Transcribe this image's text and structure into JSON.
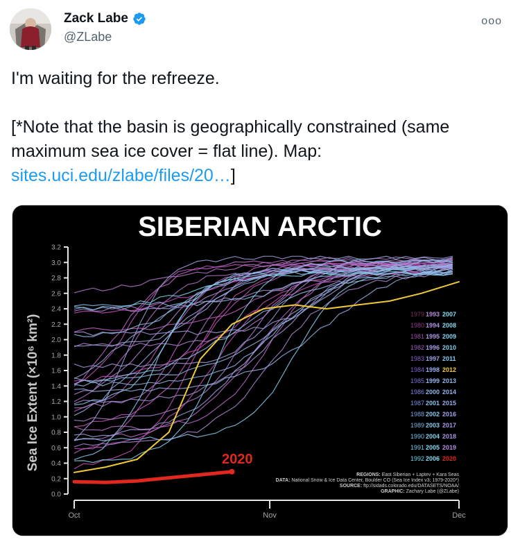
{
  "user": {
    "name": "Zack Labe",
    "handle": "@ZLabe",
    "verified_icon": "verified-badge-icon",
    "more_label": "ooo"
  },
  "tweet": {
    "line1": "I'm waiting for the refreeze.",
    "line2": "[*Note that the basin is geographically constrained (same maximum sea ice cover = flat line). Map:",
    "link": "sites.uci.edu/zlabe/files/20…",
    "link_suffix": "]"
  },
  "colors": {
    "link": "#1d9bf0",
    "highlight_2012": "#f0c93a",
    "highlight_2020": "#e0281e",
    "chart_bg": "#000000"
  },
  "chart_data": {
    "type": "line",
    "title": "SIBERIAN ARCTIC",
    "ylabel": "Sea Ice Extent (×10⁶ km²)",
    "xlabel": "",
    "x_ticks": [
      "Oct",
      "Nov",
      "Dec"
    ],
    "y_ticks": [
      "0.0",
      "0.2",
      "0.4",
      "0.6",
      "0.8",
      "1.0",
      "1.2",
      "1.4",
      "1.6",
      "1.8",
      "2.0",
      "2.2",
      "2.4",
      "2.6",
      "2.8",
      "3.0",
      "3.2"
    ],
    "ylim": [
      0,
      3.2
    ],
    "x_unit": "day of Oct–Dec (0 = Oct 1, 31 = Nov 1, 61 = Dec 1)",
    "xlim": [
      0,
      61
    ],
    "grid": false,
    "legend_position": "right",
    "legend": [
      [
        "1979",
        "1993",
        "2007"
      ],
      [
        "1980",
        "1994",
        "2008"
      ],
      [
        "1981",
        "1995",
        "2009"
      ],
      [
        "1982",
        "1996",
        "2010"
      ],
      [
        "1983",
        "1997",
        "2011"
      ],
      [
        "1984",
        "1998",
        "2012"
      ],
      [
        "1985",
        "1999",
        "2013"
      ],
      [
        "1986",
        "2000",
        "2014"
      ],
      [
        "1987",
        "2001",
        "2015"
      ],
      [
        "1988",
        "2002",
        "2016"
      ],
      [
        "1989",
        "2003",
        "2017"
      ],
      [
        "1990",
        "2004",
        "2018"
      ],
      [
        "1991",
        "2005",
        "2019"
      ],
      [
        "1992",
        "2006",
        "2020"
      ]
    ],
    "highlight_label": "2020",
    "series": [
      {
        "name": "2012",
        "x": [
          0,
          5,
          10,
          15,
          20,
          25,
          30,
          35,
          40,
          45,
          50,
          55,
          61
        ],
        "values": [
          0.28,
          0.35,
          0.45,
          0.8,
          1.75,
          2.2,
          2.4,
          2.45,
          2.4,
          2.45,
          2.5,
          2.6,
          2.75
        ]
      },
      {
        "name": "2020",
        "x": [
          0,
          5,
          10,
          15,
          20,
          25
        ],
        "values": [
          0.16,
          0.15,
          0.17,
          0.21,
          0.25,
          0.29
        ]
      }
    ],
    "annotations": {
      "regions_key": "REGIONS:",
      "regions": "East Siberian + Laptev + Kara Seas",
      "data_key": "DATA:",
      "data": "National Snow & Ice Data Center, Boulder CO (Sea Ice Index v3; 1979-2020*)",
      "source_key": "SOURCE:",
      "source": "ftp://sidads.colorado.edu/DATASETS/NOAA/",
      "graphic_key": "GRAPHIC:",
      "graphic": "Zachary Labe (@ZLabe)"
    }
  }
}
